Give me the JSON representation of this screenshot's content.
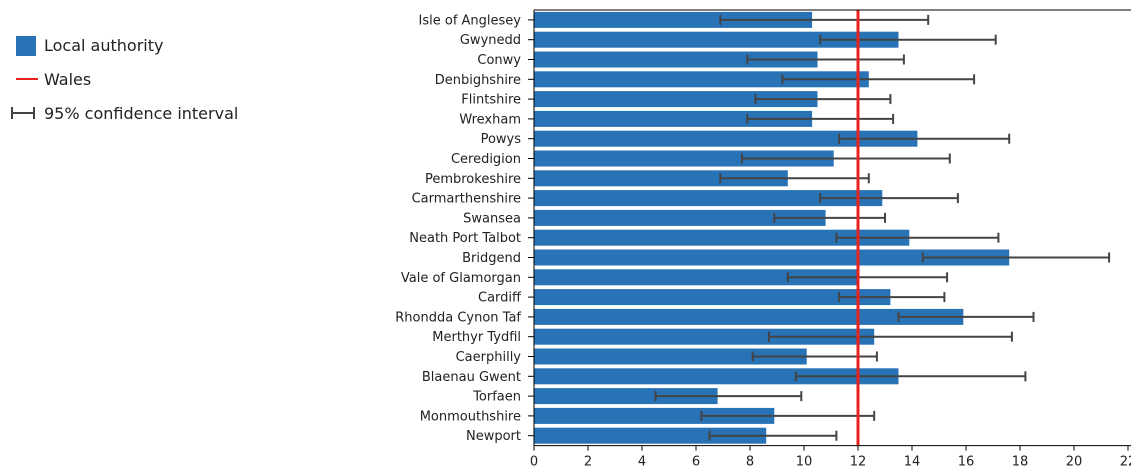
{
  "legend": {
    "items": [
      {
        "label": "Local authority",
        "kind": "box"
      },
      {
        "label": "Wales",
        "kind": "line"
      },
      {
        "label": "95% confidence interval",
        "kind": "ci"
      }
    ]
  },
  "colors": {
    "bar": "#2872b6",
    "reference": "#e8231f",
    "ci": "#444444",
    "axis": "#000000"
  },
  "chart_data": {
    "type": "bar",
    "orientation": "horizontal",
    "categories": [
      "Isle of Anglesey",
      "Gwynedd",
      "Conwy",
      "Denbighshire",
      "Flintshire",
      "Wrexham",
      "Powys",
      "Ceredigion",
      "Pembrokeshire",
      "Carmarthenshire",
      "Swansea",
      "Neath Port Talbot",
      "Bridgend",
      "Vale of Glamorgan",
      "Cardiff",
      "Rhondda Cynon Taf",
      "Merthyr Tydfil",
      "Caerphilly",
      "Blaenau Gwent",
      "Torfaen",
      "Monmouthshire",
      "Newport"
    ],
    "values": [
      10.3,
      13.5,
      10.5,
      12.4,
      10.5,
      10.3,
      14.2,
      11.1,
      9.4,
      12.9,
      10.8,
      13.9,
      17.6,
      12.0,
      13.2,
      15.9,
      12.6,
      10.1,
      13.5,
      6.8,
      8.9,
      8.6
    ],
    "ci_lower": [
      6.9,
      10.6,
      7.9,
      9.2,
      8.2,
      7.9,
      11.3,
      7.7,
      6.9,
      10.6,
      8.9,
      11.2,
      14.4,
      9.4,
      11.3,
      13.5,
      8.7,
      8.1,
      9.7,
      4.5,
      6.2,
      6.5
    ],
    "ci_upper": [
      14.6,
      17.1,
      13.7,
      16.3,
      13.2,
      13.3,
      17.6,
      15.4,
      12.4,
      15.7,
      13.0,
      17.2,
      21.3,
      15.3,
      15.2,
      18.5,
      17.7,
      12.7,
      18.2,
      9.9,
      12.6,
      11.2
    ],
    "reference_line": {
      "name": "Wales",
      "value": 12
    },
    "xlim": [
      0,
      22
    ],
    "x_ticks": [
      "0",
      "2",
      "4",
      "6",
      "8",
      "10",
      "12",
      "14",
      "16",
      "18",
      "20",
      "22"
    ],
    "grid": false,
    "legend_position": "left"
  }
}
